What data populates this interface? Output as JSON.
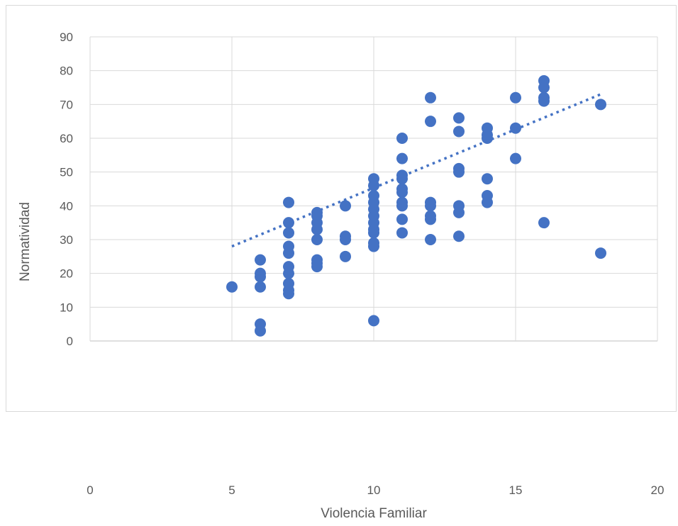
{
  "chart_data": {
    "type": "scatter",
    "title": "",
    "xlabel": "Violencia Familiar",
    "ylabel": "Normatividad",
    "xlim": [
      0,
      20
    ],
    "ylim": [
      0,
      90
    ],
    "x_ticks": [
      "0",
      "5",
      "10",
      "15",
      "20"
    ],
    "y_ticks": [
      "0",
      "10",
      "20",
      "30",
      "40",
      "50",
      "60",
      "70",
      "80",
      "90"
    ],
    "grid": true,
    "legend": "none",
    "colors": {
      "marker": "#4472C4",
      "trendline": "#4472C4",
      "grid": "#d9d9d9",
      "text": "#595959"
    },
    "trendline": {
      "style": "dotted",
      "x": [
        5,
        18
      ],
      "y": [
        28,
        73
      ]
    },
    "points": [
      [
        5,
        16
      ],
      [
        6,
        24
      ],
      [
        6,
        20
      ],
      [
        6,
        19
      ],
      [
        6,
        16
      ],
      [
        6,
        5
      ],
      [
        6,
        3
      ],
      [
        7,
        41
      ],
      [
        7,
        35
      ],
      [
        7,
        32
      ],
      [
        7,
        28
      ],
      [
        7,
        26
      ],
      [
        7,
        22
      ],
      [
        7,
        20
      ],
      [
        7,
        17
      ],
      [
        7,
        15
      ],
      [
        7,
        14
      ],
      [
        8,
        38
      ],
      [
        8,
        37
      ],
      [
        8,
        35
      ],
      [
        8,
        33
      ],
      [
        8,
        30
      ],
      [
        8,
        24
      ],
      [
        8,
        23
      ],
      [
        8,
        22
      ],
      [
        9,
        40
      ],
      [
        9,
        31
      ],
      [
        9,
        30
      ],
      [
        9,
        25
      ],
      [
        10,
        48
      ],
      [
        10,
        46
      ],
      [
        10,
        43
      ],
      [
        10,
        41
      ],
      [
        10,
        39
      ],
      [
        10,
        37
      ],
      [
        10,
        35
      ],
      [
        10,
        33
      ],
      [
        10,
        32
      ],
      [
        10,
        29
      ],
      [
        10,
        28
      ],
      [
        10,
        6
      ],
      [
        11,
        60
      ],
      [
        11,
        54
      ],
      [
        11,
        49
      ],
      [
        11,
        48
      ],
      [
        11,
        45
      ],
      [
        11,
        44
      ],
      [
        11,
        41
      ],
      [
        11,
        40
      ],
      [
        11,
        36
      ],
      [
        11,
        32
      ],
      [
        12,
        72
      ],
      [
        12,
        65
      ],
      [
        12,
        41
      ],
      [
        12,
        40
      ],
      [
        12,
        37
      ],
      [
        12,
        36
      ],
      [
        12,
        30
      ],
      [
        13,
        66
      ],
      [
        13,
        62
      ],
      [
        13,
        51
      ],
      [
        13,
        50
      ],
      [
        13,
        40
      ],
      [
        13,
        38
      ],
      [
        13,
        31
      ],
      [
        14,
        63
      ],
      [
        14,
        61
      ],
      [
        14,
        60
      ],
      [
        14,
        48
      ],
      [
        14,
        43
      ],
      [
        14,
        41
      ],
      [
        15,
        72
      ],
      [
        15,
        63
      ],
      [
        15,
        54
      ],
      [
        16,
        77
      ],
      [
        16,
        75
      ],
      [
        16,
        72
      ],
      [
        16,
        71
      ],
      [
        16,
        35
      ],
      [
        18,
        70
      ],
      [
        18,
        26
      ]
    ]
  }
}
